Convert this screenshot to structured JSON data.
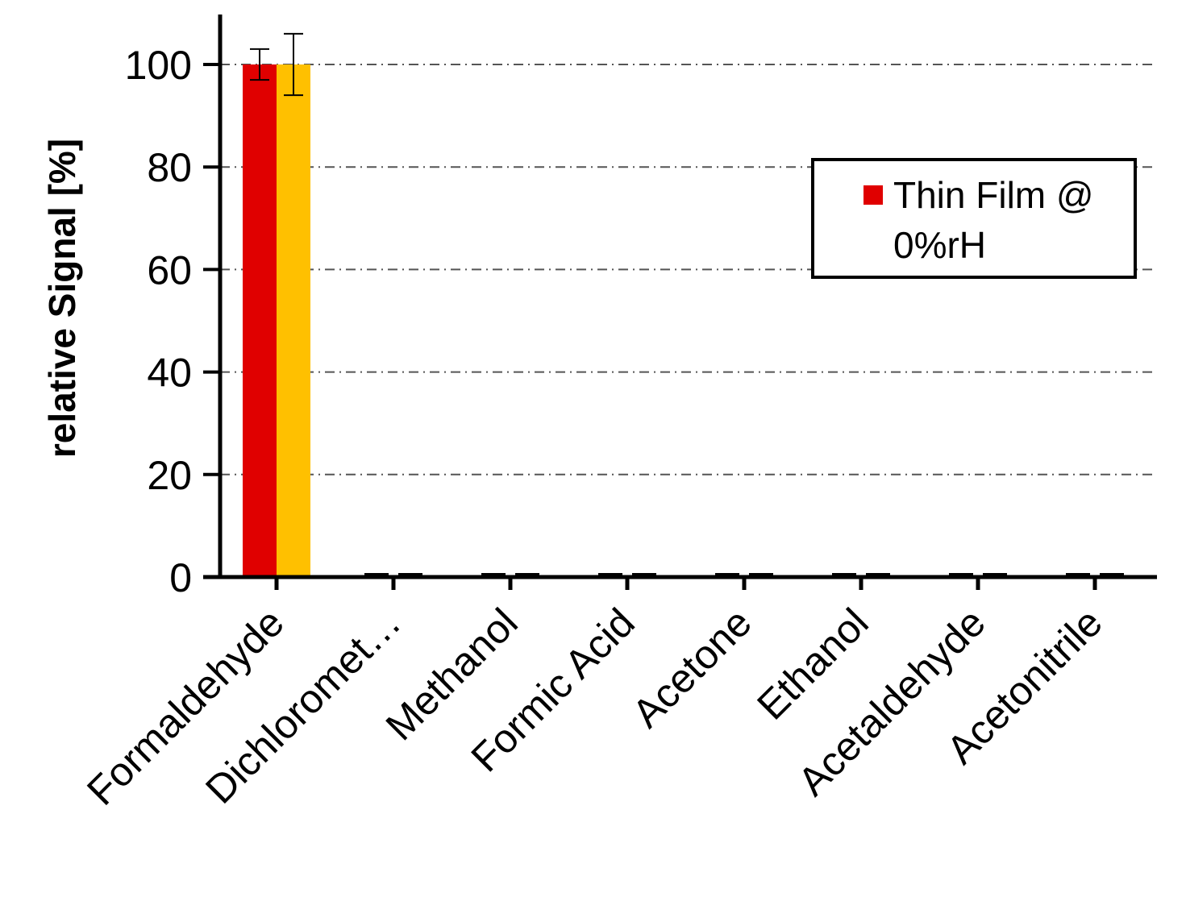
{
  "chart_data": {
    "type": "bar",
    "ylabel": "relative Signal [%]",
    "xlabel": "",
    "ylim": [
      0,
      100
    ],
    "yticks": [
      0,
      20,
      40,
      60,
      80,
      100
    ],
    "grid": "horizontal dash-dot",
    "legend_position": "top-right",
    "categories": [
      "Formaldehyde",
      "Dichloromet…",
      "Methanol",
      "Formic Acid",
      "Acetone",
      "Ethanol",
      "Acetaldehyde",
      "Acetonitrile"
    ],
    "series": [
      {
        "name": "Thin Film @ 0%rH",
        "color": "#e00000",
        "values": [
          100,
          0,
          0,
          0,
          0,
          0,
          0,
          0
        ],
        "errors": [
          3,
          0,
          0,
          0,
          0,
          0,
          0,
          0
        ]
      },
      {
        "color": "#ffc000",
        "values": [
          100,
          0,
          0,
          0,
          0,
          0,
          0,
          0
        ],
        "errors": [
          6,
          0,
          0,
          0,
          0,
          0,
          0,
          0
        ]
      }
    ],
    "legend": {
      "line1": "Thin Film @",
      "line2": "0%rH"
    }
  }
}
